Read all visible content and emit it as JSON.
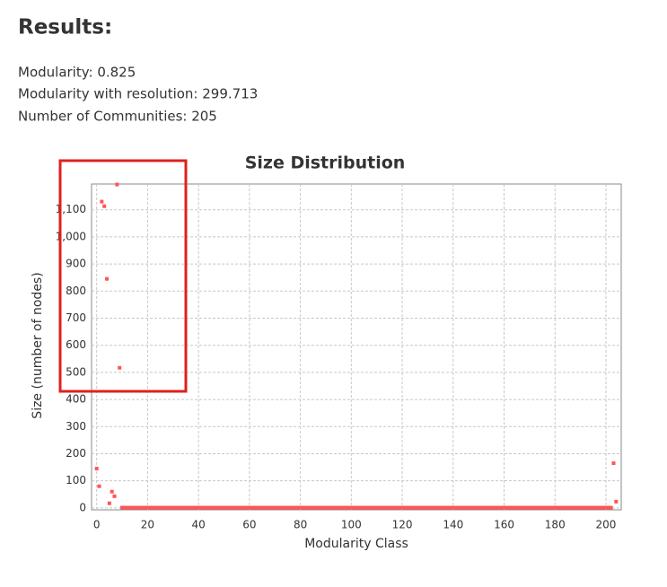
{
  "results": {
    "title": "Results:",
    "lines": [
      "Modularity: 0.825",
      "Modularity with resolution: 299.713",
      "Number of Communities: 205"
    ]
  },
  "chart_data": {
    "type": "scatter",
    "title": "Size Distribution",
    "x_label": "Modularity Class",
    "y_label": "Size (number of nodes)",
    "color": "#ff5555",
    "grid": true,
    "xlim": [
      -2,
      206
    ],
    "ylim": [
      -7,
      1195
    ],
    "xticks": [
      0,
      20,
      40,
      60,
      80,
      100,
      120,
      140,
      160,
      180,
      200
    ],
    "yticks": [
      0,
      100,
      200,
      300,
      400,
      500,
      600,
      700,
      800,
      900,
      {
        "value": 1000,
        "label": "1,000"
      },
      {
        "value": 1100,
        "label": "1,100"
      }
    ],
    "x": [
      0,
      1,
      2,
      3,
      4,
      5,
      6,
      7,
      8,
      9,
      10,
      11,
      12,
      13,
      14,
      15,
      16,
      17,
      18,
      19,
      20,
      21,
      22,
      23,
      24,
      25,
      26,
      27,
      28,
      29,
      30,
      31,
      32,
      33,
      34,
      35,
      36,
      37,
      38,
      39,
      40,
      41,
      42,
      43,
      44,
      45,
      46,
      47,
      48,
      49,
      50,
      51,
      52,
      53,
      54,
      55,
      56,
      57,
      58,
      59,
      60,
      61,
      62,
      63,
      64,
      65,
      66,
      67,
      68,
      69,
      70,
      71,
      72,
      73,
      74,
      75,
      76,
      77,
      78,
      79,
      80,
      81,
      82,
      83,
      84,
      85,
      86,
      87,
      88,
      89,
      90,
      91,
      92,
      93,
      94,
      95,
      96,
      97,
      98,
      99,
      100,
      101,
      102,
      103,
      104,
      105,
      106,
      107,
      108,
      109,
      110,
      111,
      112,
      113,
      114,
      115,
      116,
      117,
      118,
      119,
      120,
      121,
      122,
      123,
      124,
      125,
      126,
      127,
      128,
      129,
      130,
      131,
      132,
      133,
      134,
      135,
      136,
      137,
      138,
      139,
      140,
      141,
      142,
      143,
      144,
      145,
      146,
      147,
      148,
      149,
      150,
      151,
      152,
      153,
      154,
      155,
      156,
      157,
      158,
      159,
      160,
      161,
      162,
      163,
      164,
      165,
      166,
      167,
      168,
      169,
      170,
      171,
      172,
      173,
      174,
      175,
      176,
      177,
      178,
      179,
      180,
      181,
      182,
      183,
      184,
      185,
      186,
      187,
      188,
      189,
      190,
      191,
      192,
      193,
      194,
      195,
      196,
      197,
      198,
      199,
      200,
      201,
      202,
      203,
      204
    ],
    "values": [
      145,
      80,
      1130,
      1113,
      845,
      17,
      60,
      43,
      1193,
      517,
      1,
      1,
      1,
      1,
      1,
      1,
      1,
      1,
      1,
      1,
      1,
      1,
      1,
      1,
      1,
      1,
      1,
      1,
      1,
      1,
      1,
      1,
      1,
      1,
      1,
      1,
      1,
      1,
      1,
      1,
      1,
      1,
      1,
      1,
      1,
      1,
      1,
      1,
      1,
      1,
      1,
      1,
      1,
      1,
      1,
      1,
      1,
      1,
      1,
      1,
      1,
      1,
      1,
      1,
      1,
      1,
      1,
      1,
      1,
      1,
      1,
      1,
      1,
      1,
      1,
      1,
      1,
      1,
      1,
      1,
      1,
      1,
      1,
      1,
      1,
      1,
      1,
      1,
      1,
      1,
      1,
      1,
      1,
      1,
      1,
      1,
      1,
      1,
      1,
      1,
      1,
      1,
      1,
      1,
      1,
      1,
      1,
      1,
      1,
      1,
      1,
      1,
      1,
      1,
      1,
      1,
      1,
      1,
      1,
      1,
      1,
      1,
      1,
      1,
      1,
      1,
      1,
      1,
      1,
      1,
      1,
      1,
      1,
      1,
      1,
      1,
      1,
      1,
      1,
      1,
      1,
      1,
      1,
      1,
      1,
      1,
      1,
      1,
      1,
      1,
      1,
      1,
      1,
      1,
      1,
      1,
      1,
      1,
      1,
      1,
      1,
      1,
      1,
      1,
      1,
      1,
      1,
      1,
      1,
      1,
      1,
      1,
      1,
      1,
      1,
      1,
      1,
      1,
      1,
      1,
      1,
      1,
      1,
      1,
      1,
      1,
      1,
      1,
      1,
      1,
      1,
      1,
      1,
      1,
      1,
      1,
      1,
      1,
      1,
      1,
      1,
      1,
      1,
      165,
      23
    ]
  }
}
